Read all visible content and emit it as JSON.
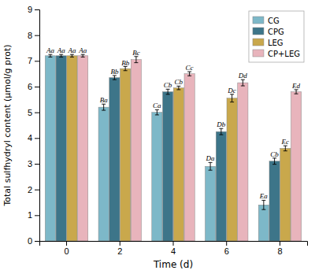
{
  "chart_data": {
    "type": "bar",
    "xlabel": "Time (d)",
    "ylabel": "Total sulfhydryl content (μmol/g prot)",
    "categories": [
      "0",
      "2",
      "4",
      "6",
      "8"
    ],
    "series": [
      {
        "name": "CG",
        "color": "#7db8c8",
        "values": [
          7.2,
          5.2,
          5.0,
          2.9,
          1.4
        ],
        "errors": [
          0.05,
          0.12,
          0.1,
          0.15,
          0.18
        ],
        "annotations": [
          "Aa",
          "Ba",
          "Ca",
          "Da",
          "Ea"
        ]
      },
      {
        "name": "CPG",
        "color": "#3d7589",
        "values": [
          7.2,
          6.35,
          5.8,
          4.25,
          3.1
        ],
        "errors": [
          0.05,
          0.08,
          0.1,
          0.12,
          0.12
        ],
        "annotations": [
          "Aa",
          "Bb",
          "Cb",
          "Db",
          "Cb"
        ]
      },
      {
        "name": "LEG",
        "color": "#c9a84c",
        "values": [
          7.2,
          6.7,
          5.95,
          5.55,
          3.6
        ],
        "errors": [
          0.05,
          0.08,
          0.07,
          0.15,
          0.1
        ],
        "annotations": [
          "Aa",
          "Bb",
          "Cb",
          "Dc",
          "Ec"
        ]
      },
      {
        "name": "CP+LEG",
        "color": "#e8b4bc",
        "values": [
          7.2,
          7.05,
          6.5,
          6.15,
          5.8
        ],
        "errors": [
          0.05,
          0.12,
          0.08,
          0.12,
          0.08
        ],
        "annotations": [
          "Aa",
          "Bc",
          "Cc",
          "Dd",
          "Ed"
        ]
      }
    ],
    "ylim": [
      0,
      9
    ],
    "yticks": [
      0,
      1,
      2,
      3,
      4,
      5,
      6,
      7,
      8,
      9
    ],
    "grid": false,
    "legend": "upper right"
  }
}
